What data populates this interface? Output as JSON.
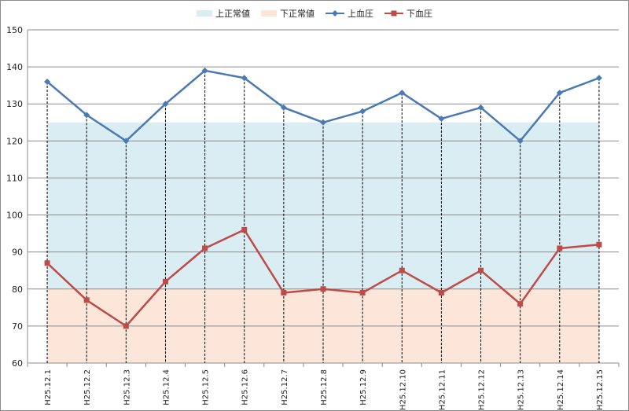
{
  "chart_data": {
    "type": "line",
    "title": "",
    "xlabel": "",
    "ylabel": "",
    "categories": [
      "H25.12.1",
      "H25.12.2",
      "H25.12.3",
      "H25.12.4",
      "H25.12.5",
      "H25.12.6",
      "H25.12.7",
      "H25.12.8",
      "H25.12.9",
      "H25.12.10",
      "H25.12.11",
      "H25.12.12",
      "H25.12.13",
      "H25.12.14",
      "H25.12.15"
    ],
    "ylim": [
      60,
      150
    ],
    "yticks": [
      60,
      70,
      80,
      90,
      100,
      110,
      120,
      130,
      140,
      150
    ],
    "grid": "horizontal",
    "legend_position": "top",
    "bands": [
      {
        "name": "上正常値",
        "from": 80,
        "to": 125,
        "color": "#daedf3"
      },
      {
        "name": "下正常値",
        "from": 60,
        "to": 80,
        "color": "#fce6d9"
      }
    ],
    "series": [
      {
        "name": "上血圧",
        "color": "#4a7ab4",
        "marker": "diamond",
        "values": [
          136,
          127,
          120,
          130,
          139,
          137,
          129,
          125,
          128,
          133,
          126,
          129,
          120,
          133,
          137
        ]
      },
      {
        "name": "下血圧",
        "color": "#be4b48",
        "marker": "square",
        "values": [
          87,
          77,
          70,
          82,
          91,
          96,
          79,
          80,
          79,
          85,
          79,
          85,
          76,
          91,
          92
        ]
      }
    ],
    "drop_lines": true
  }
}
